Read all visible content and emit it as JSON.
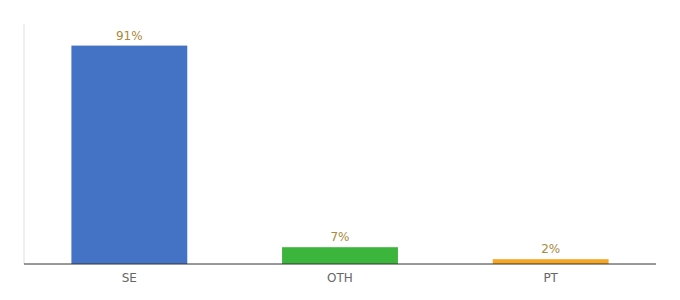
{
  "chart_data": {
    "type": "bar",
    "categories": [
      "SE",
      "OTH",
      "PT"
    ],
    "values": [
      91,
      7,
      2
    ],
    "value_labels": [
      "91%",
      "7%",
      "2%"
    ],
    "colors": [
      "#4472c4",
      "#3cb53c",
      "#f5a623"
    ],
    "ylim": [
      0,
      100
    ],
    "data_labels": true,
    "tick_labels": "x",
    "grid": false
  }
}
